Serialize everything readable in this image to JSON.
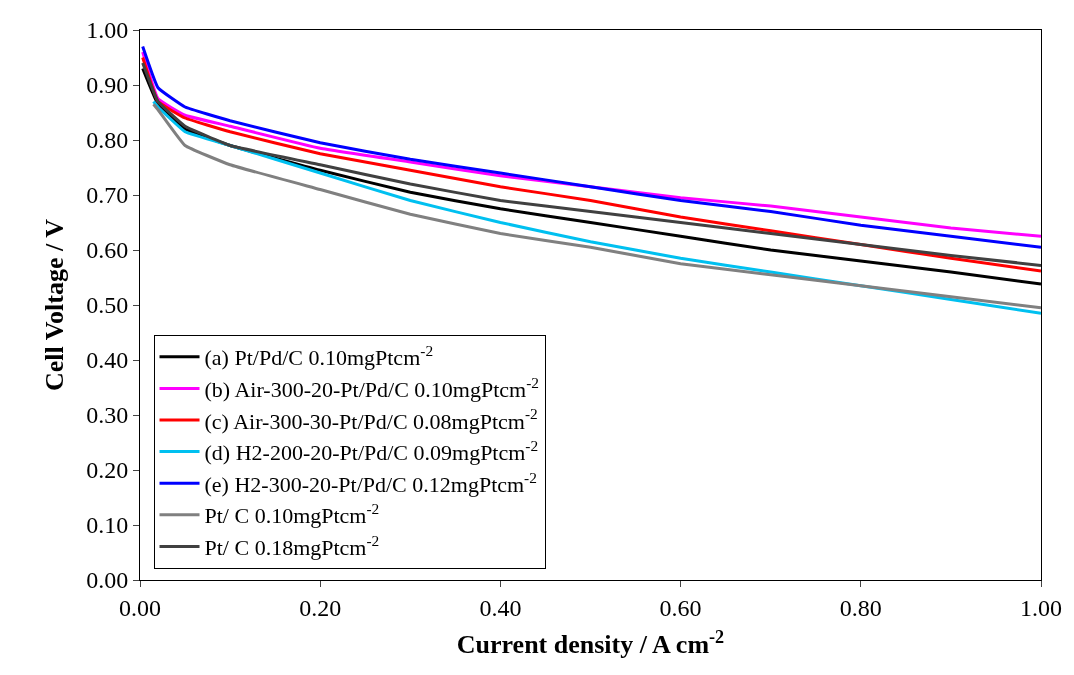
{
  "chart_data": {
    "type": "line",
    "xlabel": "Current density / A cm$^{-2}$",
    "ylabel": "Cell Voltage / V",
    "xlim": [
      0,
      1
    ],
    "xticks": [
      {
        "value": 0,
        "label": "0.00"
      },
      {
        "value": 0.2,
        "label": "0.20"
      },
      {
        "value": 0.4,
        "label": "0.40"
      },
      {
        "value": 0.6,
        "label": "0.60"
      },
      {
        "value": 0.8,
        "label": "0.80"
      },
      {
        "value": 1,
        "label": "1.00"
      }
    ],
    "ylim": [
      0,
      1
    ],
    "yticks": [
      {
        "value": 0,
        "label": "0.00"
      },
      {
        "value": 0.1,
        "label": "0.10"
      },
      {
        "value": 0.2,
        "label": "0.20"
      },
      {
        "value": 0.3,
        "label": "0.30"
      },
      {
        "value": 0.4,
        "label": "0.40"
      },
      {
        "value": 0.5,
        "label": "0.50"
      },
      {
        "value": 0.6,
        "label": "0.60"
      },
      {
        "value": 0.7,
        "label": "0.70"
      },
      {
        "value": 0.8,
        "label": "0.80"
      },
      {
        "value": 0.9,
        "label": "0.90"
      },
      {
        "value": 1,
        "label": "1.00"
      }
    ],
    "x": [
      0.003,
      0.02,
      0.05,
      0.1,
      0.2,
      0.3,
      0.4,
      0.5,
      0.6,
      0.7,
      0.8,
      0.9,
      1.0
    ],
    "legend": "bottom left",
    "marker": "none",
    "line_style": "solid",
    "series": [
      {
        "name": "(a) Pt/Pd/C 0.10mgPtcm$^{-2}$",
        "color": "#000000",
        "values": [
          0.93,
          0.865,
          0.82,
          0.79,
          0.745,
          0.705,
          0.675,
          0.65,
          0.625,
          0.6,
          0.58,
          0.56,
          0.538
        ]
      },
      {
        "name": "(b) Air-300-20-Pt/Pd/C 0.10mgPtcm$^{-2}$",
        "color": "#ff00ff",
        "values": [
          0.96,
          0.875,
          0.845,
          0.825,
          0.785,
          0.76,
          0.735,
          0.715,
          0.695,
          0.68,
          0.66,
          0.64,
          0.625
        ]
      },
      {
        "name": "(c) Air-300-30-Pt/Pd/C 0.08mgPtcm$^{-2}$",
        "color": "#ff0000",
        "values": [
          0.95,
          0.87,
          0.84,
          0.815,
          0.775,
          0.745,
          0.715,
          0.69,
          0.66,
          0.635,
          0.61,
          0.585,
          0.562
        ]
      },
      {
        "name": "(d) H2-200-20-Pt/Pd/C 0.09mgPtcm$^{-2}$",
        "color": "#00c0f0",
        "x": [
          0.015,
          0.02,
          0.05,
          0.1,
          0.2,
          0.3,
          0.4,
          0.5,
          0.6,
          0.7,
          0.8,
          0.9,
          1.0
        ],
        "values": [
          0.87,
          0.86,
          0.815,
          0.79,
          0.74,
          0.69,
          0.65,
          0.615,
          0.585,
          0.56,
          0.535,
          0.51,
          0.485
        ]
      },
      {
        "name": "(e) H2-300-20-Pt/Pd/C 0.12mgPtcm$^{-2}$",
        "color": "#0000ff",
        "values": [
          0.97,
          0.895,
          0.86,
          0.835,
          0.795,
          0.765,
          0.74,
          0.715,
          0.69,
          0.67,
          0.645,
          0.625,
          0.605
        ]
      },
      {
        "name": "Pt/ C 0.10mgPtcm$^{-2}$",
        "color": "#808080",
        "x": [
          0.015,
          0.02,
          0.05,
          0.1,
          0.2,
          0.3,
          0.4,
          0.5,
          0.6,
          0.7,
          0.8,
          0.9,
          1.0
        ],
        "values": [
          0.865,
          0.855,
          0.79,
          0.755,
          0.71,
          0.665,
          0.63,
          0.605,
          0.575,
          0.555,
          0.535,
          0.515,
          0.495
        ]
      },
      {
        "name": "Pt/ C 0.18mgPtcm$^{-2}$",
        "color": "#404040",
        "values": [
          0.94,
          0.87,
          0.825,
          0.79,
          0.755,
          0.72,
          0.69,
          0.67,
          0.65,
          0.63,
          0.61,
          0.59,
          0.572
        ]
      }
    ]
  }
}
